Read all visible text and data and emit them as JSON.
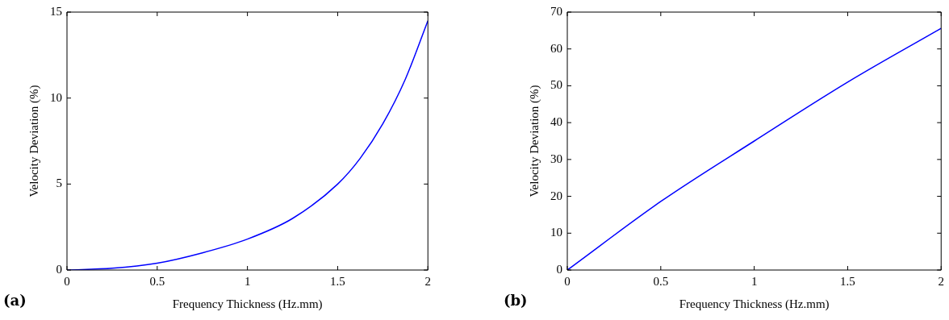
{
  "chart_data": [
    {
      "type": "line",
      "xlabel": "Frequency Thickness (Hz.mm)",
      "ylabel": "Velocity Deviation (%)",
      "annotations": [
        "(a)"
      ],
      "series": [
        {
          "color": "#0000ff",
          "x": [
            0,
            0.25,
            0.5,
            0.75,
            1,
            1.25,
            1.5,
            1.625,
            1.75,
            1.875,
            2
          ],
          "values": [
            0,
            0.1,
            0.4,
            1.0,
            1.8,
            3.0,
            5.0,
            6.5,
            8.5,
            11.1,
            14.5
          ]
        }
      ],
      "xlim": [
        0,
        2
      ],
      "xticks": [
        0,
        0.5,
        1,
        1.5,
        2
      ],
      "ylim": [
        0,
        15
      ],
      "yticks": [
        0,
        5,
        10,
        15
      ],
      "marker": "none",
      "line_style": "solid"
    },
    {
      "type": "line",
      "xlabel": "Frequency Thickness (Hz.mm)",
      "ylabel": "Velocity Deviation (%)",
      "annotations": [
        "(b)"
      ],
      "series": [
        {
          "color": "#0000ff",
          "x": [
            0,
            0.5,
            1,
            1.5,
            2
          ],
          "values": [
            0,
            18.6,
            35,
            51,
            65.6
          ]
        }
      ],
      "xlim": [
        0,
        2
      ],
      "xticks": [
        0,
        0.5,
        1,
        1.5,
        2
      ],
      "ylim": [
        0,
        70
      ],
      "yticks": [
        0,
        10,
        20,
        30,
        40,
        50,
        60,
        70
      ],
      "marker": "none",
      "line_style": "solid"
    }
  ]
}
